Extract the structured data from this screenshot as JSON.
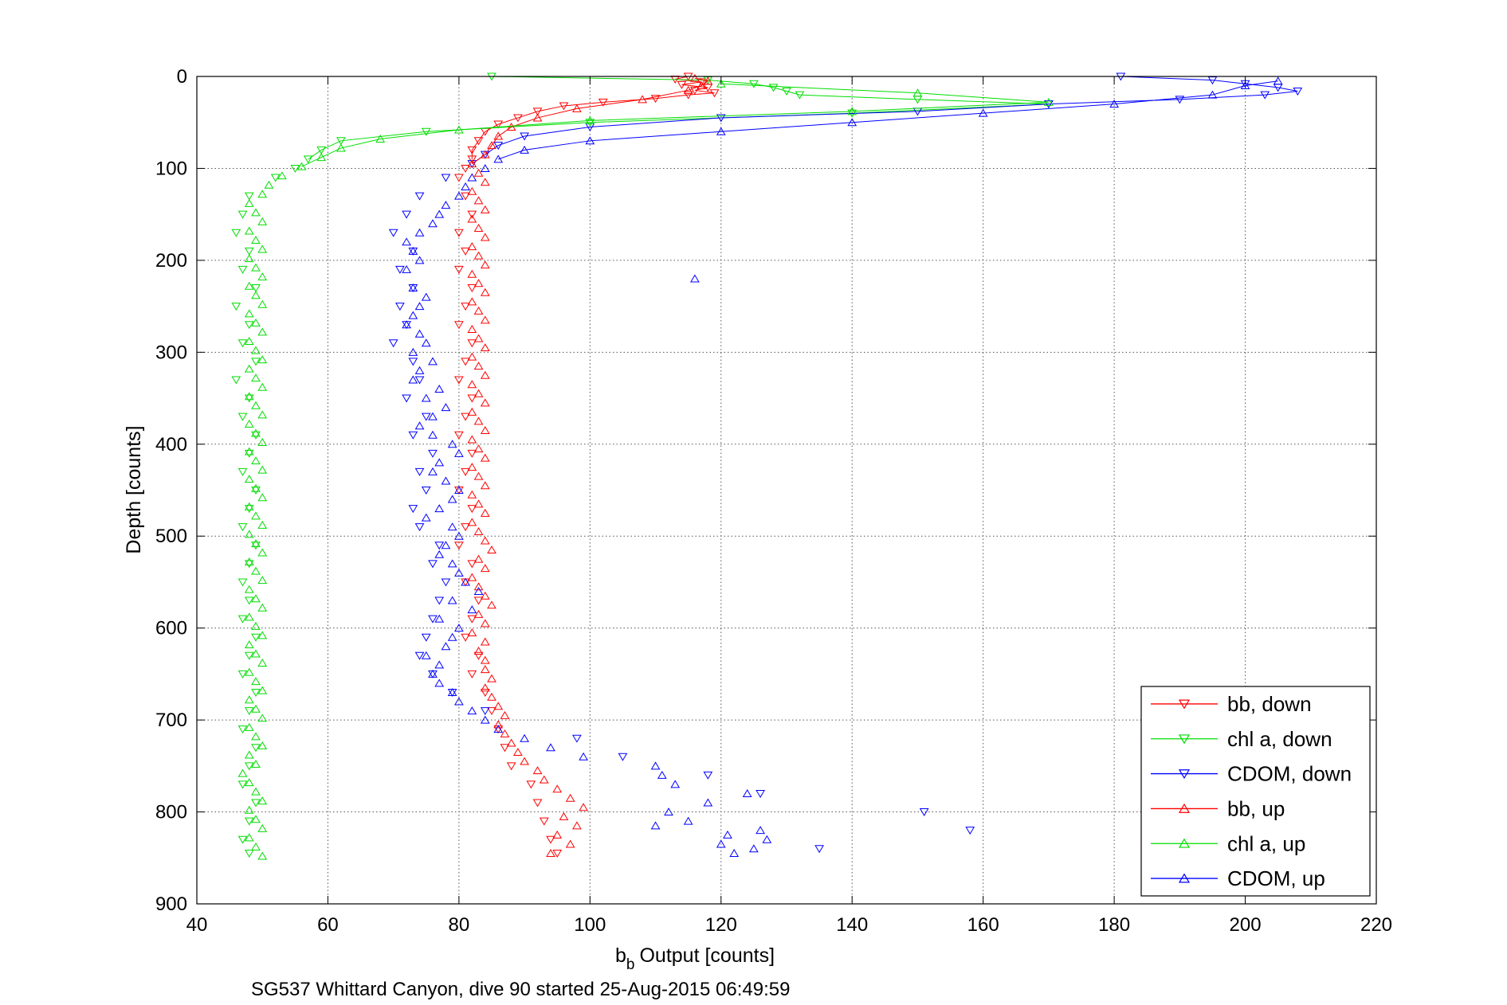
{
  "chart_data": {
    "type": "scatter",
    "title": "",
    "xlabel": "Output [counts]",
    "xlabel_symbol": "b",
    "xlabel_subscript": "b",
    "ylabel": "Depth [counts]",
    "caption": "SG537 Whittard Canyon, dive 90 started 25-Aug-2015 06:49:59",
    "xlim": [
      40,
      220
    ],
    "ylim": [
      0,
      900
    ],
    "y_reversed": true,
    "grid": true,
    "legend_position": "bottom-right",
    "x_ticks": [
      "40",
      "60",
      "80",
      "100",
      "120",
      "140",
      "160",
      "180",
      "200",
      "220"
    ],
    "y_ticks": [
      "0",
      "100",
      "200",
      "300",
      "400",
      "500",
      "600",
      "700",
      "800",
      "900"
    ],
    "series": [
      {
        "name": "bb, down",
        "color": "#ff0000",
        "marker": "triangle-down",
        "depth": [
          0,
          3,
          6,
          9,
          12,
          15,
          18,
          20,
          24,
          28,
          32,
          38,
          45,
          52,
          60,
          70,
          80,
          90,
          100,
          110,
          130,
          150,
          170,
          190,
          210,
          230,
          250,
          270,
          290,
          310,
          330,
          350,
          370,
          390,
          410,
          430,
          450,
          470,
          490,
          510,
          530,
          550,
          570,
          590,
          610,
          630,
          650,
          670,
          690,
          710,
          730,
          750,
          770,
          790,
          810,
          830,
          845
        ],
        "values": [
          115,
          113,
          117,
          114,
          118,
          116,
          119,
          115,
          110,
          102,
          96,
          92,
          89,
          86,
          84,
          83,
          82,
          82,
          81,
          80,
          81,
          82,
          80,
          81,
          80,
          82,
          81,
          80,
          82,
          81,
          80,
          82,
          81,
          80,
          82,
          81,
          80,
          82,
          81,
          80,
          82,
          81,
          83,
          82,
          81,
          83,
          82,
          84,
          85,
          86,
          87,
          88,
          91,
          92,
          93,
          94,
          95
        ]
      },
      {
        "name": "chl a, down",
        "color": "#00dd00",
        "marker": "triangle-down",
        "depth": [
          0,
          4,
          8,
          12,
          16,
          20,
          25,
          30,
          40,
          50,
          60,
          70,
          80,
          90,
          100,
          110,
          130,
          150,
          170,
          190,
          210,
          230,
          250,
          270,
          290,
          310,
          330,
          350,
          370,
          390,
          410,
          430,
          450,
          470,
          490,
          510,
          530,
          550,
          570,
          590,
          610,
          630,
          650,
          670,
          690,
          710,
          730,
          750,
          770,
          790,
          810,
          830,
          845
        ],
        "values": [
          85,
          118,
          125,
          128,
          130,
          132,
          150,
          170,
          140,
          100,
          75,
          62,
          59,
          57,
          55,
          52,
          48,
          47,
          46,
          48,
          47,
          49,
          46,
          48,
          47,
          49,
          46,
          48,
          47,
          49,
          48,
          47,
          49,
          48,
          47,
          49,
          48,
          47,
          48,
          47,
          49,
          48,
          47,
          49,
          48,
          47,
          49,
          48,
          47,
          49,
          48,
          47,
          48
        ]
      },
      {
        "name": "CDOM, down",
        "color": "#0000ff",
        "marker": "triangle-down",
        "depth": [
          0,
          4,
          8,
          12,
          16,
          20,
          25,
          30,
          38,
          45,
          55,
          65,
          75,
          85,
          95,
          110,
          130,
          150,
          170,
          190,
          210,
          230,
          250,
          270,
          290,
          310,
          330,
          350,
          370,
          390,
          410,
          430,
          450,
          470,
          490,
          510,
          530,
          550,
          570,
          590,
          610,
          630,
          650,
          670,
          690,
          720,
          740,
          760,
          780,
          800,
          820,
          840
        ],
        "values": [
          181,
          195,
          200,
          205,
          208,
          203,
          190,
          170,
          150,
          120,
          100,
          90,
          86,
          84,
          82,
          78,
          74,
          72,
          70,
          73,
          71,
          73,
          71,
          72,
          70,
          73,
          74,
          72,
          75,
          73,
          76,
          74,
          75,
          73,
          74,
          77,
          76,
          78,
          77,
          76,
          75,
          74,
          76,
          79,
          84,
          98,
          105,
          118,
          126,
          151,
          158,
          135
        ]
      },
      {
        "name": "bb, up",
        "color": "#ff0000",
        "marker": "triangle-up",
        "depth": [
          845,
          835,
          825,
          815,
          805,
          795,
          785,
          775,
          765,
          755,
          745,
          735,
          725,
          715,
          705,
          695,
          685,
          675,
          665,
          655,
          645,
          635,
          625,
          615,
          605,
          595,
          585,
          575,
          565,
          555,
          545,
          535,
          525,
          515,
          505,
          495,
          485,
          475,
          465,
          455,
          445,
          435,
          425,
          415,
          405,
          395,
          385,
          375,
          365,
          355,
          345,
          335,
          325,
          315,
          305,
          295,
          285,
          275,
          265,
          255,
          245,
          235,
          225,
          215,
          205,
          195,
          185,
          175,
          165,
          155,
          145,
          135,
          125,
          115,
          105,
          95,
          85,
          75,
          65,
          55,
          45,
          35,
          25,
          15,
          10,
          5,
          2
        ],
        "values": [
          94,
          97,
          95,
          98,
          96,
          99,
          97,
          95,
          93,
          92,
          90,
          89,
          88,
          87,
          86,
          87,
          86,
          85,
          84,
          85,
          84,
          84,
          83,
          84,
          82,
          84,
          83,
          85,
          84,
          83,
          82,
          84,
          83,
          85,
          84,
          83,
          82,
          84,
          83,
          82,
          84,
          83,
          82,
          84,
          83,
          82,
          84,
          83,
          82,
          84,
          83,
          82,
          84,
          83,
          82,
          84,
          83,
          82,
          84,
          83,
          82,
          84,
          83,
          82,
          84,
          83,
          82,
          84,
          83,
          82,
          84,
          83,
          82,
          84,
          83,
          82,
          84,
          85,
          86,
          88,
          92,
          98,
          108,
          115,
          117,
          118,
          116
        ]
      },
      {
        "name": "chl a, up",
        "color": "#00dd00",
        "marker": "triangle-up",
        "depth": [
          848,
          838,
          828,
          818,
          808,
          798,
          788,
          778,
          768,
          758,
          748,
          738,
          728,
          718,
          708,
          698,
          688,
          678,
          668,
          658,
          648,
          638,
          628,
          618,
          608,
          598,
          588,
          578,
          568,
          558,
          548,
          538,
          528,
          518,
          508,
          498,
          488,
          478,
          468,
          458,
          448,
          438,
          428,
          418,
          408,
          398,
          388,
          378,
          368,
          358,
          348,
          338,
          328,
          318,
          308,
          298,
          288,
          278,
          268,
          258,
          248,
          238,
          228,
          218,
          208,
          198,
          188,
          178,
          168,
          158,
          148,
          138,
          128,
          118,
          108,
          98,
          88,
          78,
          68,
          58,
          48,
          38,
          28,
          18,
          8
        ],
        "values": [
          50,
          49,
          48,
          50,
          49,
          48,
          50,
          49,
          48,
          47,
          49,
          48,
          50,
          49,
          48,
          50,
          49,
          48,
          50,
          49,
          48,
          50,
          49,
          48,
          50,
          49,
          48,
          50,
          49,
          48,
          50,
          49,
          48,
          50,
          49,
          48,
          50,
          49,
          48,
          50,
          49,
          48,
          50,
          49,
          48,
          50,
          49,
          48,
          50,
          49,
          48,
          50,
          49,
          48,
          50,
          49,
          48,
          50,
          49,
          48,
          50,
          49,
          48,
          50,
          49,
          48,
          50,
          49,
          48,
          50,
          49,
          48,
          50,
          51,
          53,
          56,
          59,
          62,
          68,
          80,
          100,
          140,
          170,
          150,
          120
        ]
      },
      {
        "name": "CDOM, up",
        "color": "#0000ff",
        "marker": "triangle-up",
        "depth": [
          845,
          840,
          835,
          830,
          825,
          820,
          815,
          810,
          800,
          790,
          780,
          770,
          760,
          750,
          740,
          730,
          720,
          710,
          700,
          690,
          680,
          670,
          660,
          650,
          640,
          630,
          620,
          610,
          600,
          590,
          580,
          570,
          560,
          550,
          540,
          530,
          520,
          510,
          500,
          490,
          480,
          470,
          460,
          450,
          440,
          430,
          420,
          410,
          400,
          390,
          380,
          370,
          360,
          350,
          340,
          330,
          320,
          310,
          300,
          290,
          280,
          270,
          260,
          250,
          240,
          230,
          220,
          210,
          200,
          190,
          180,
          170,
          160,
          150,
          140,
          130,
          120,
          110,
          100,
          90,
          80,
          70,
          60,
          50,
          40,
          30,
          20,
          10,
          5
        ],
        "values": [
          122,
          125,
          120,
          127,
          121,
          126,
          110,
          115,
          112,
          118,
          124,
          113,
          111,
          110,
          99,
          94,
          90,
          86,
          84,
          82,
          80,
          79,
          77,
          76,
          77,
          75,
          78,
          79,
          80,
          77,
          82,
          79,
          83,
          81,
          80,
          79,
          77,
          78,
          80,
          79,
          75,
          77,
          79,
          80,
          78,
          76,
          77,
          80,
          79,
          76,
          74,
          76,
          78,
          75,
          77,
          73,
          74,
          76,
          73,
          75,
          74,
          72,
          73,
          74,
          75,
          73,
          116,
          72,
          74,
          73,
          72,
          74,
          76,
          77,
          78,
          80,
          81,
          82,
          84,
          86,
          90,
          100,
          120,
          140,
          160,
          180,
          195,
          200,
          205
        ]
      }
    ]
  }
}
